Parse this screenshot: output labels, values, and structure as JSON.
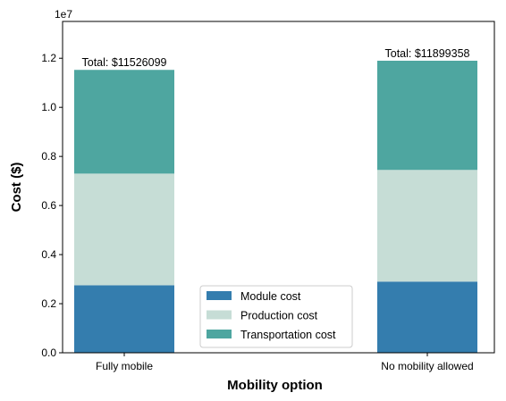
{
  "chart_data": {
    "type": "bar",
    "stacked": true,
    "categories": [
      "Fully mobile",
      "No mobility allowed"
    ],
    "series": [
      {
        "name": "Module cost",
        "values": [
          2750000,
          2900000
        ],
        "color": "#347dae"
      },
      {
        "name": "Production cost",
        "values": [
          4550000,
          4550000
        ],
        "color": "#c6ddd6"
      },
      {
        "name": "Transportation cost",
        "values": [
          4226099,
          4449358
        ],
        "color": "#4ea6a0"
      }
    ],
    "totals": [
      "Total: $11526099",
      "Total: $11899358"
    ],
    "xlabel": "Mobility option",
    "ylabel": "Cost ($)",
    "ylim": [
      0,
      13500000
    ],
    "yticks": [
      0,
      2000000,
      4000000,
      6000000,
      8000000,
      10000000,
      12000000
    ],
    "ytick_labels": [
      "0.0",
      "0.2",
      "0.4",
      "0.6",
      "0.8",
      "1.0",
      "1.2"
    ],
    "offset_label": "1e7",
    "legend_position": "lower center",
    "grid": false
  }
}
